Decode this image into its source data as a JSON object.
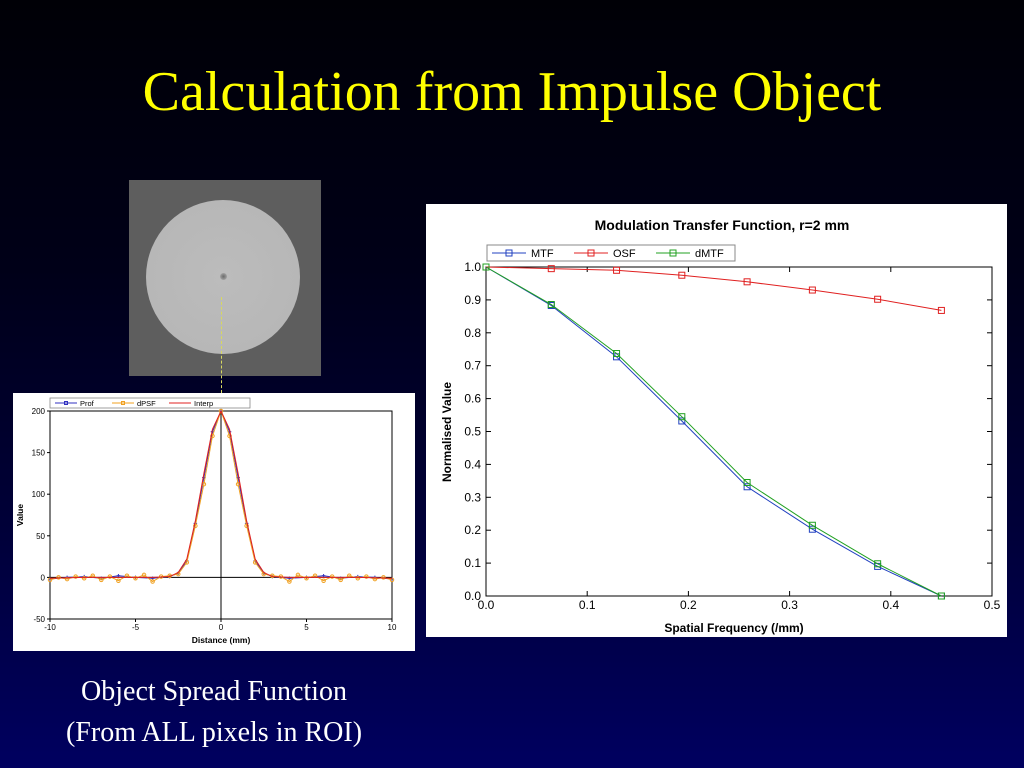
{
  "slide": {
    "title": "Calculation from Impulse Object",
    "caption_line1": "Object Spread Function",
    "caption_line2": "(From ALL pixels in ROI)"
  },
  "colors": {
    "title": "#ffff00",
    "caption": "#ffffff",
    "connector": "#d8d860",
    "mtf": "#2040c0",
    "osf": "#e02020",
    "dmtf": "#20a020",
    "prof": "#3030c0",
    "dpsf": "#f0a020",
    "interp": "#e02020"
  },
  "chart_data": [
    {
      "type": "line",
      "title": "",
      "xlabel": "Distance (mm)",
      "ylabel": "Value",
      "xlim": [
        -10,
        10
      ],
      "ylim": [
        -50,
        200
      ],
      "x_ticks": [
        "-10",
        "-5",
        "0",
        "5",
        "10"
      ],
      "y_ticks": [
        "-50",
        "0",
        "50",
        "100",
        "150",
        "200"
      ],
      "grid": false,
      "legend_position": "top",
      "series": [
        {
          "name": "Prof",
          "x": [
            -10,
            -9,
            -8,
            -7,
            -6,
            -5,
            -4,
            -3,
            -2.5,
            -2,
            -1.5,
            -1,
            -0.5,
            0,
            0.5,
            1,
            1.5,
            2,
            2.5,
            3,
            4,
            5,
            6,
            7,
            8,
            9,
            10
          ],
          "y": [
            -2,
            0,
            1,
            -1,
            2,
            0,
            -1,
            1,
            5,
            20,
            65,
            120,
            175,
            200,
            175,
            120,
            65,
            20,
            5,
            1,
            -1,
            0,
            2,
            -1,
            1,
            0,
            -2
          ]
        },
        {
          "name": "dPSF",
          "x": [
            -10,
            -9.5,
            -9,
            -8.5,
            -8,
            -7.5,
            -7,
            -6.5,
            -6,
            -5.5,
            -5,
            -4.5,
            -4,
            -3.5,
            -3,
            -2.5,
            -2,
            -1.5,
            -1,
            -0.5,
            0,
            0.5,
            1,
            1.5,
            2,
            2.5,
            3,
            3.5,
            4,
            4.5,
            5,
            5.5,
            6,
            6.5,
            7,
            7.5,
            8,
            8.5,
            9,
            9.5,
            10
          ],
          "y": [
            -3,
            0,
            -2,
            1,
            -1,
            2,
            -3,
            1,
            -4,
            2,
            -1,
            3,
            -5,
            1,
            2,
            4,
            18,
            62,
            112,
            170,
            200,
            170,
            112,
            62,
            18,
            4,
            2,
            1,
            -5,
            3,
            -1,
            2,
            -4,
            1,
            -3,
            2,
            -1,
            1,
            -2,
            0,
            -3
          ]
        },
        {
          "name": "Interp",
          "x": [
            -10,
            -8,
            -6,
            -4,
            -3,
            -2.5,
            -2,
            -1.5,
            -1,
            -0.5,
            0,
            0.5,
            1,
            1.5,
            2,
            2.5,
            3,
            4,
            6,
            8,
            10
          ],
          "y": [
            -1,
            0,
            0,
            0,
            1,
            6,
            22,
            68,
            125,
            178,
            200,
            178,
            125,
            68,
            22,
            6,
            1,
            0,
            0,
            0,
            -1
          ]
        }
      ]
    },
    {
      "type": "line",
      "title": "Modulation Transfer Function, r=2 mm",
      "xlabel": "Spatial Frequency (/mm)",
      "ylabel": "Normalised Value",
      "xlim": [
        0,
        0.5
      ],
      "ylim": [
        0,
        1
      ],
      "x_ticks": [
        "0.0",
        "0.1",
        "0.2",
        "0.3",
        "0.4",
        "0.5"
      ],
      "y_ticks": [
        "0.0",
        "0.1",
        "0.2",
        "0.3",
        "0.4",
        "0.5",
        "0.6",
        "0.7",
        "0.8",
        "0.9",
        "1.0"
      ],
      "grid": false,
      "legend_position": "top-left",
      "series": [
        {
          "name": "MTF",
          "x": [
            0,
            0.0645,
            0.129,
            0.1935,
            0.258,
            0.3225,
            0.387,
            0.45
          ],
          "y": [
            1.0,
            0.883,
            0.727,
            0.532,
            0.332,
            0.203,
            0.09,
            0.0
          ]
        },
        {
          "name": "OSF",
          "x": [
            0,
            0.0645,
            0.129,
            0.1935,
            0.258,
            0.3225,
            0.387,
            0.45
          ],
          "y": [
            1.0,
            0.995,
            0.99,
            0.975,
            0.955,
            0.93,
            0.902,
            0.868
          ]
        },
        {
          "name": "dMTF",
          "x": [
            0,
            0.0645,
            0.129,
            0.1935,
            0.258,
            0.3225,
            0.387,
            0.45
          ],
          "y": [
            1.0,
            0.886,
            0.737,
            0.545,
            0.345,
            0.215,
            0.098,
            0.0
          ]
        }
      ]
    }
  ]
}
